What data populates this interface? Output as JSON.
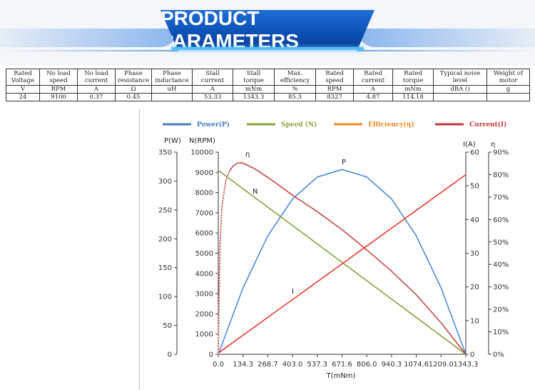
{
  "header": {
    "title": "PRODUCT PARAMETERS"
  },
  "table": {
    "headers": [
      [
        "Rated",
        "Voltage"
      ],
      [
        "No load",
        "speed"
      ],
      [
        "No load",
        "current"
      ],
      [
        "Phase",
        "resistance"
      ],
      [
        "Phase",
        "inductance"
      ],
      [
        "Stall",
        "current"
      ],
      [
        "Stall",
        "torque"
      ],
      [
        "Max.",
        "efficiency"
      ],
      [
        "Rated speed"
      ],
      [
        "Rated",
        "current"
      ],
      [
        "Rated",
        "torque"
      ],
      [
        "Typical noise",
        "level"
      ],
      [
        "Weight of",
        "motor"
      ]
    ],
    "units": [
      "V",
      "RPM",
      "A",
      "Ω",
      "uH",
      "A",
      "mNm",
      "%",
      "RPM",
      "A",
      "mNm",
      "dBA ()",
      "g"
    ],
    "values": [
      "24",
      "9100",
      "0.37",
      "0.45",
      "",
      "53.33",
      "1343.3",
      "85.3",
      "8327",
      "4.87",
      "114.18",
      "",
      ""
    ]
  },
  "chart_data": {
    "type": "line",
    "xlabel": "T(mNm)",
    "x_ticks": [
      "0.0",
      "134.3",
      "268.7",
      "403.0",
      "537.3",
      "671.6",
      "806.0",
      "940.3",
      "1074.6",
      "1209.0",
      "1343.3"
    ],
    "xlim": [
      0,
      1343.3
    ],
    "axes": {
      "power": {
        "label": "P(W)",
        "lim": [
          0,
          350
        ],
        "ticks": [
          "0",
          "50",
          "100",
          "150",
          "200",
          "250",
          "300",
          "350"
        ]
      },
      "speed": {
        "label": "N(RPM)",
        "lim": [
          0,
          10000
        ],
        "ticks": [
          "0",
          "1000",
          "2000",
          "3000",
          "4000",
          "5000",
          "6000",
          "7000",
          "8000",
          "9000",
          "10000"
        ]
      },
      "current": {
        "label": "I(A)",
        "lim": [
          0,
          60
        ],
        "ticks": [
          "0",
          "10",
          "20",
          "30",
          "40",
          "50",
          "60"
        ]
      },
      "efficiency": {
        "label": "η",
        "lim": [
          0,
          90
        ],
        "ticks": [
          "0%",
          "10%",
          "20%",
          "30%",
          "40%",
          "50%",
          "60%",
          "70%",
          "80%",
          "90%"
        ]
      }
    },
    "legend": [
      {
        "key": "power",
        "label": "Power(P)",
        "color": "#4a7ebb"
      },
      {
        "key": "speed",
        "label": "Speed (N)",
        "color": "#8aa83a"
      },
      {
        "key": "efficiency",
        "label": "Efficiency(η)",
        "color": "#f08a24"
      },
      {
        "key": "current",
        "label": "Current(I)",
        "color": "#c0393b"
      }
    ],
    "curve_labels": {
      "power": "P",
      "speed": "N",
      "efficiency": "η",
      "current": "I"
    },
    "series": [
      {
        "key": "power",
        "axis": "power",
        "color": "#4a8bd6",
        "x": [
          0,
          134.3,
          268.7,
          403.0,
          537.3,
          671.6,
          806.0,
          940.3,
          1074.6,
          1209.0,
          1343.3
        ],
        "values": [
          0,
          115,
          205,
          269,
          307,
          320,
          307,
          269,
          205,
          115,
          0
        ]
      },
      {
        "key": "speed",
        "axis": "speed",
        "color": "#7fa33a",
        "x": [
          0,
          1343.3
        ],
        "values": [
          9100,
          0
        ]
      },
      {
        "key": "current",
        "axis": "current",
        "color": "#e83a30",
        "x": [
          0,
          1343.3
        ],
        "values": [
          0.37,
          53.33
        ]
      },
      {
        "key": "efficiency",
        "axis": "efficiency",
        "color": "#c44a44",
        "x": [
          0,
          5,
          10,
          20,
          40,
          60,
          80,
          100,
          114.18,
          134.3,
          200,
          300,
          400,
          537.3,
          671.6,
          806.0,
          940.3,
          1074.6,
          1209.0,
          1343.3
        ],
        "values": [
          0,
          30,
          50,
          66,
          77,
          81.5,
          83.8,
          84.9,
          85.3,
          85.1,
          82.5,
          77,
          71,
          63.5,
          55.5,
          46.5,
          37,
          26.5,
          14,
          0
        ]
      }
    ]
  }
}
